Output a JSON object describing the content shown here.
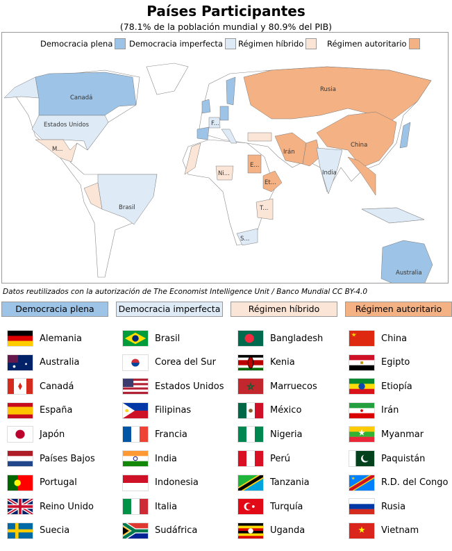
{
  "title": "Países Participantes",
  "subtitle": "(78.1% de la población mundial y 80.9% del PIB)",
  "colors": {
    "plena": "#9dc3e6",
    "imperfecta": "#deebf7",
    "hibrido": "#fbe5d6",
    "autoritario": "#f4b183"
  },
  "legend": [
    "Democracia plena",
    "Democracia imperfecta",
    "Régimen híbrido",
    "Régimen autoritario"
  ],
  "map_labels": {
    "canada": "Canadá",
    "usa": "Estados Unidos",
    "mexico": "M...",
    "brasil": "Brasil",
    "francia": "F...",
    "rusia": "Rusia",
    "china": "China",
    "iran": "Irán",
    "india": "India",
    "egipto": "E...",
    "nigeria": "Ni...",
    "etiopia": "Et...",
    "tanzania": "T...",
    "sudafrica": "S...",
    "australia": "Australia"
  },
  "credit": "Datos reutilizados con la autorización de The Economist Intelligence Unit / Banco Mundial CC BY-4.0",
  "categories": [
    "Democracia plena",
    "Democracia imperfecta",
    "Régimen híbrido",
    "Régimen autoritario"
  ],
  "columns": [
    [
      {
        "name": "Alemania",
        "icon": "flag-de"
      },
      {
        "name": "Australia",
        "icon": "flag-au"
      },
      {
        "name": "Canadá",
        "icon": "flag-ca"
      },
      {
        "name": "España",
        "icon": "flag-es"
      },
      {
        "name": "Japón",
        "icon": "flag-jp"
      },
      {
        "name": "Países Bajos",
        "icon": "flag-nl"
      },
      {
        "name": "Portugal",
        "icon": "flag-pt"
      },
      {
        "name": "Reino Unido",
        "icon": "flag-gb"
      },
      {
        "name": "Suecia",
        "icon": "flag-se"
      }
    ],
    [
      {
        "name": "Brasil",
        "icon": "flag-br"
      },
      {
        "name": "Corea del Sur",
        "icon": "flag-kr"
      },
      {
        "name": "Estados Unidos",
        "icon": "flag-us"
      },
      {
        "name": "Filipinas",
        "icon": "flag-ph"
      },
      {
        "name": "Francia",
        "icon": "flag-fr"
      },
      {
        "name": "India",
        "icon": "flag-in"
      },
      {
        "name": "Indonesia",
        "icon": "flag-id"
      },
      {
        "name": "Italia",
        "icon": "flag-it"
      },
      {
        "name": "Sudáfrica",
        "icon": "flag-za"
      }
    ],
    [
      {
        "name": "Bangladesh",
        "icon": "flag-bd"
      },
      {
        "name": "Kenia",
        "icon": "flag-ke"
      },
      {
        "name": "Marruecos",
        "icon": "flag-ma"
      },
      {
        "name": "México",
        "icon": "flag-mx"
      },
      {
        "name": "Nigeria",
        "icon": "flag-ng"
      },
      {
        "name": "Perú",
        "icon": "flag-pe"
      },
      {
        "name": "Tanzania",
        "icon": "flag-tz"
      },
      {
        "name": "Turquía",
        "icon": "flag-tr"
      },
      {
        "name": "Uganda",
        "icon": "flag-ug"
      }
    ],
    [
      {
        "name": "China",
        "icon": "flag-cn"
      },
      {
        "name": "Egipto",
        "icon": "flag-eg"
      },
      {
        "name": "Etiopía",
        "icon": "flag-et"
      },
      {
        "name": "Irán",
        "icon": "flag-ir"
      },
      {
        "name": "Myanmar",
        "icon": "flag-mm"
      },
      {
        "name": "Paquistán",
        "icon": "flag-pk"
      },
      {
        "name": "R.D. del Congo",
        "icon": "flag-cd"
      },
      {
        "name": "Rusia",
        "icon": "flag-ru"
      },
      {
        "name": "Vietnam",
        "icon": "flag-vn"
      }
    ]
  ]
}
